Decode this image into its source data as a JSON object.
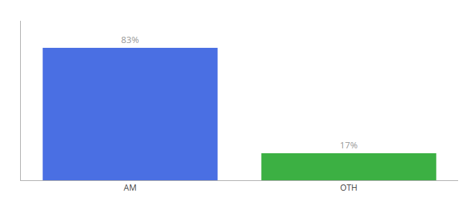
{
  "chart_data": {
    "type": "bar",
    "categories": [
      "AM",
      "OTH"
    ],
    "values": [
      83,
      17
    ],
    "value_labels": [
      "83%",
      "17%"
    ],
    "colors": [
      "#4a6fe3",
      "#3cb043"
    ],
    "data_labels": true,
    "ylim": [
      0,
      100
    ],
    "tick_labels": "x",
    "grid": false
  }
}
